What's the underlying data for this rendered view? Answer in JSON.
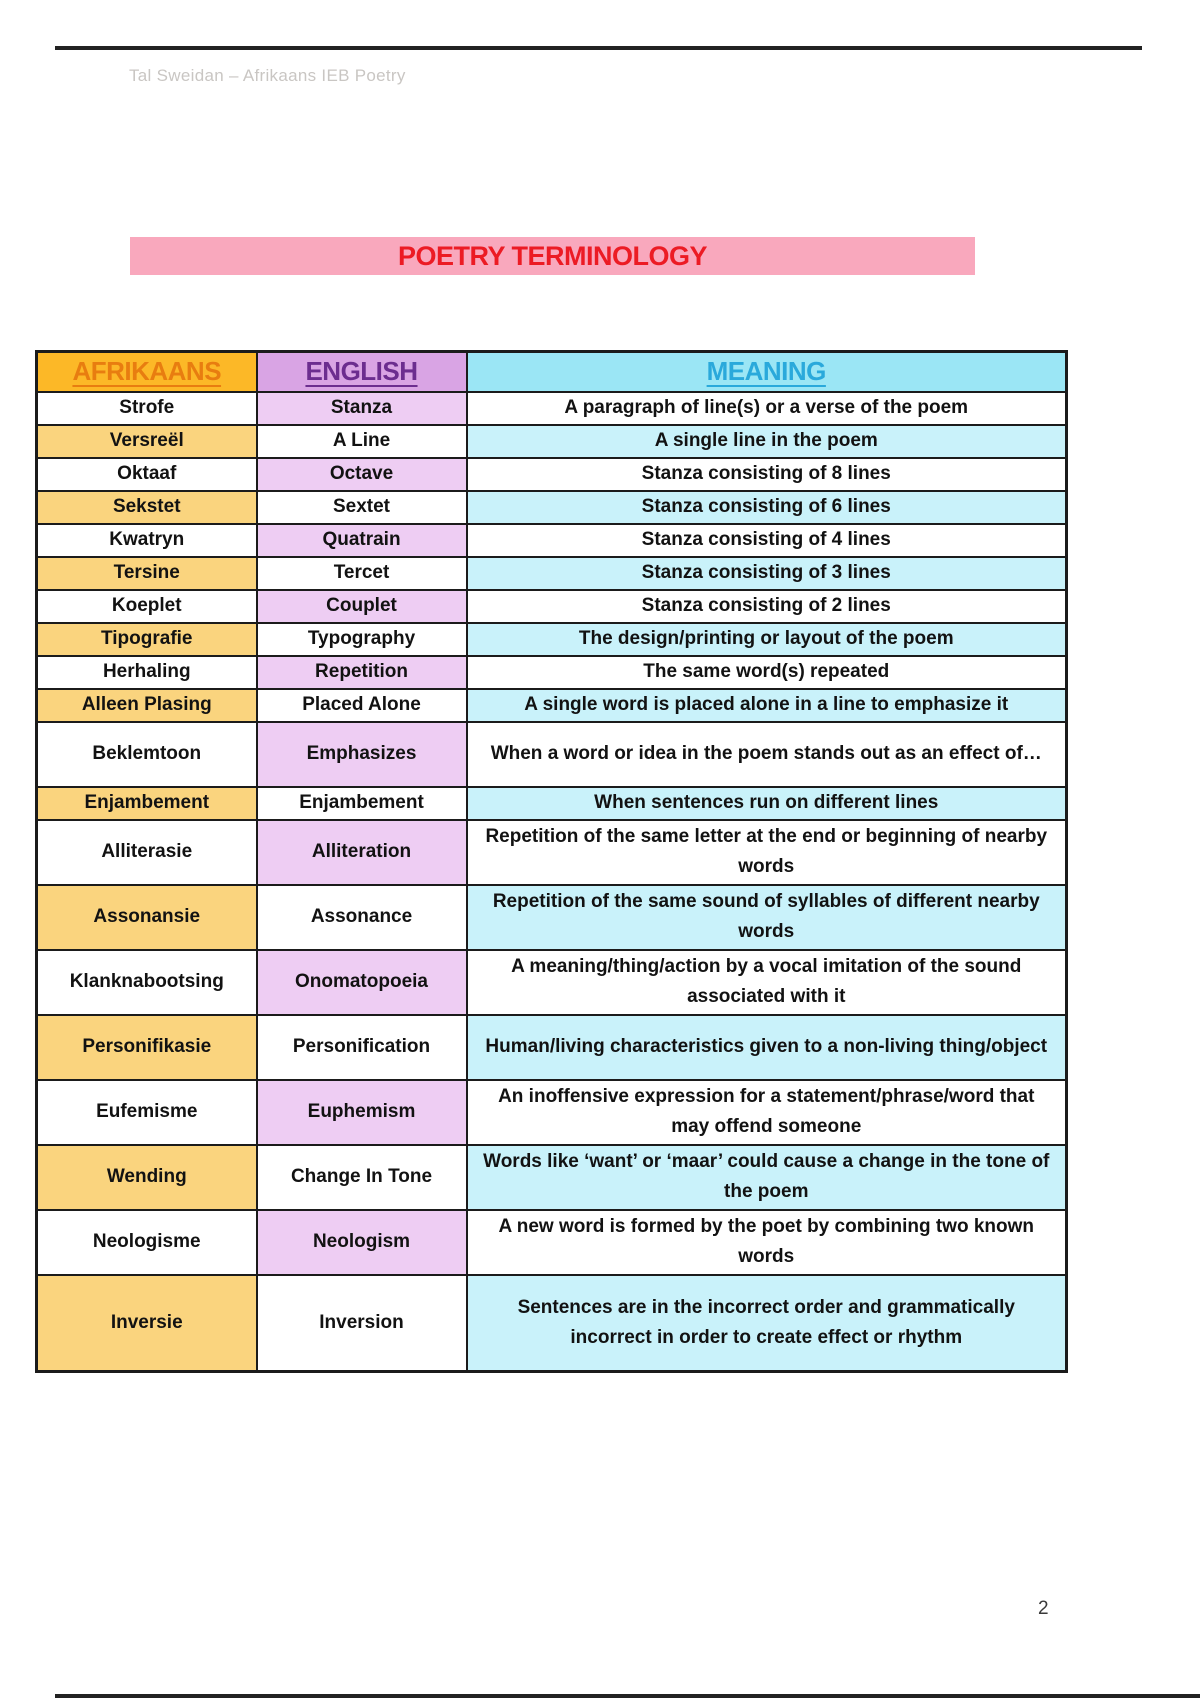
{
  "page": {
    "header_note": "Tal Sweidan – Afrikaans IEB Poetry",
    "page_number": "2"
  },
  "title": {
    "text": "POETRY TERMINOLOGY"
  },
  "table": {
    "columns": [
      {
        "key": "afrikaans",
        "label": "AFRIKAANS"
      },
      {
        "key": "english",
        "label": "ENGLISH"
      },
      {
        "key": "meaning",
        "label": "MEANING"
      }
    ],
    "rows": [
      {
        "afrikaans": "Strofe",
        "english": "Stanza",
        "meaning": "A paragraph of line(s) or a verse of the poem",
        "lines": 1
      },
      {
        "afrikaans": "Versreël",
        "english": "A Line",
        "meaning": "A single line in the poem",
        "lines": 1
      },
      {
        "afrikaans": "Oktaaf",
        "english": "Octave",
        "meaning": "Stanza consisting of 8 lines",
        "lines": 1
      },
      {
        "afrikaans": "Sekstet",
        "english": "Sextet",
        "meaning": "Stanza consisting of 6 lines",
        "lines": 1
      },
      {
        "afrikaans": "Kwatryn",
        "english": "Quatrain",
        "meaning": "Stanza consisting of 4 lines",
        "lines": 1
      },
      {
        "afrikaans": "Tersine",
        "english": "Tercet",
        "meaning": "Stanza consisting of 3 lines",
        "lines": 1
      },
      {
        "afrikaans": "Koeplet",
        "english": "Couplet",
        "meaning": "Stanza consisting of 2 lines",
        "lines": 1
      },
      {
        "afrikaans": "Tipografie",
        "english": "Typography",
        "meaning": "The design/printing or layout of the poem",
        "lines": 1
      },
      {
        "afrikaans": "Herhaling",
        "english": "Repetition",
        "meaning": "The same word(s) repeated",
        "lines": 1
      },
      {
        "afrikaans": "Alleen Plasing",
        "english": "Placed Alone",
        "meaning": "A single word is placed alone in a line to emphasize it",
        "lines": 1
      },
      {
        "afrikaans": "Beklemtoon",
        "english": "Emphasizes",
        "meaning": "When a word or idea in the poem stands out as an effect of…",
        "lines": 2
      },
      {
        "afrikaans": "Enjambement",
        "english": "Enjambement",
        "meaning": "When sentences run on different lines",
        "lines": 1
      },
      {
        "afrikaans": "Alliterasie",
        "english": "Alliteration",
        "meaning": "Repetition of the same letter at the end or beginning of nearby words",
        "lines": 2
      },
      {
        "afrikaans": "Assonansie",
        "english": "Assonance",
        "meaning": "Repetition of the same sound of syllables of different nearby words",
        "lines": 2
      },
      {
        "afrikaans": "Klanknabootsing",
        "english": "Onomatopoeia",
        "meaning": "A meaning/thing/action by a vocal imitation of the sound associated with it",
        "lines": 2
      },
      {
        "afrikaans": "Personifikasie",
        "english": "Personification",
        "meaning": "Human/living characteristics given to a non-living thing/object",
        "lines": 2
      },
      {
        "afrikaans": "Eufemisme",
        "english": "Euphemism",
        "meaning": "An inoffensive expression for a statement/phrase/word that may offend someone",
        "lines": 2
      },
      {
        "afrikaans": "Wending",
        "english": "Change In Tone",
        "meaning": "Words like ‘want’ or ‘maar’ could cause a change in the tone of the poem",
        "lines": 2
      },
      {
        "afrikaans": "Neologisme",
        "english": "Neologism",
        "meaning": "A new word is formed by the poet by combining two known words",
        "lines": 2
      },
      {
        "afrikaans": "Inversie",
        "english": "Inversion",
        "meaning": "Sentences are in the incorrect order and grammatically incorrect in order to create effect or rhythm",
        "lines": 3
      }
    ]
  },
  "colors": {
    "banner_bg": "#f9a8bd",
    "banner_text": "#ec1b24",
    "header_note_text": "#c9c6c3",
    "rule": "#222222",
    "border": "#1b1b1b",
    "col_afr_header_bg": "#fcb827",
    "col_afr_header_text": "#e87d10",
    "col_eng_header_bg": "#d9a4e4",
    "col_eng_header_text": "#6c2d8f",
    "col_mean_header_bg": "#9be6f5",
    "col_mean_header_text": "#2aa9db",
    "cell_orange": "#fad47e",
    "cell_purple": "#eecdf3",
    "cell_cyan": "#c9f2fa"
  }
}
